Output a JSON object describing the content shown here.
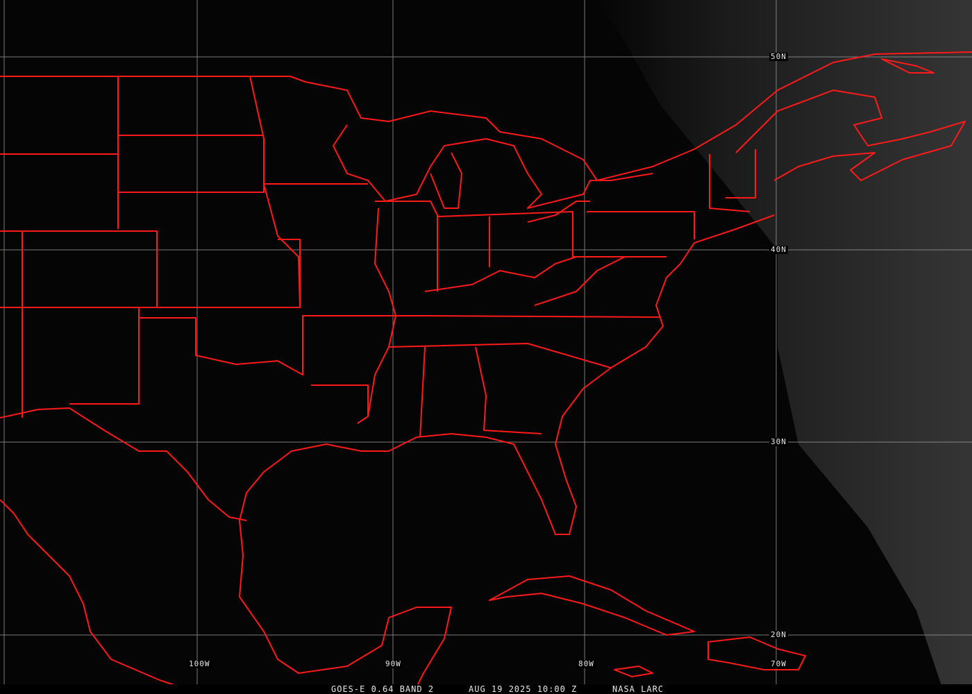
{
  "image": {
    "satellite": "GOES-E",
    "caption": {
      "product": "GOES-E 0.64 BAND 2",
      "datetime": "AUG 19 2025 10:00 Z",
      "source": "NASA LARC"
    },
    "latitude_labels": [
      "50N",
      "40N",
      "30N",
      "20N"
    ],
    "longitude_labels": [
      "100W",
      "90W",
      "80W",
      "70W"
    ],
    "colors": {
      "background": "#050505",
      "borders": "#ff1a1a",
      "grid": "#9a9a9a",
      "clouds": "#3a3a3a"
    }
  }
}
